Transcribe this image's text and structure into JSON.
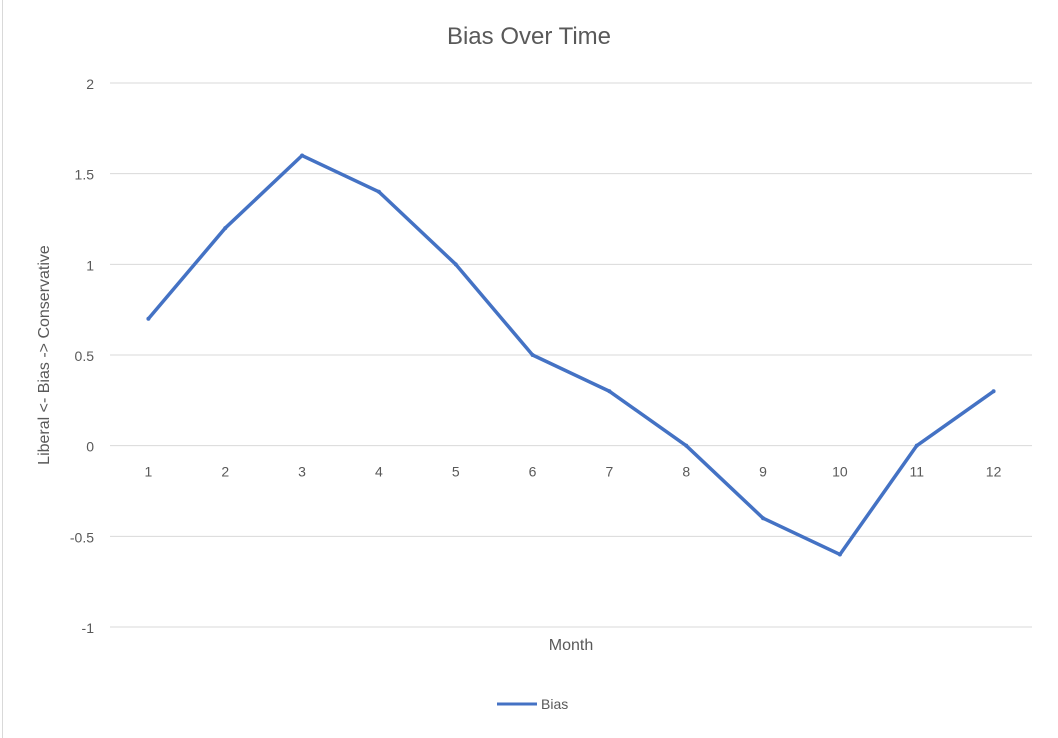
{
  "chart_data": {
    "type": "line",
    "title": "Bias Over Time",
    "xlabel": "Month",
    "ylabel": "Liberal <- Bias -> Conservative",
    "categories": [
      "1",
      "2",
      "3",
      "4",
      "5",
      "6",
      "7",
      "8",
      "9",
      "10",
      "11",
      "12"
    ],
    "series": [
      {
        "name": "Bias",
        "values": [
          0.7,
          1.2,
          1.6,
          1.4,
          1.0,
          0.5,
          0.3,
          0.0,
          -0.4,
          -0.6,
          0.0,
          0.3
        ],
        "color": "#4472c4"
      }
    ],
    "ylim": [
      -1,
      2
    ],
    "yticks": [
      "2",
      "1.5",
      "1",
      "0.5",
      "0",
      "-0.5",
      "-1"
    ],
    "grid": true,
    "legend_position": "bottom"
  }
}
